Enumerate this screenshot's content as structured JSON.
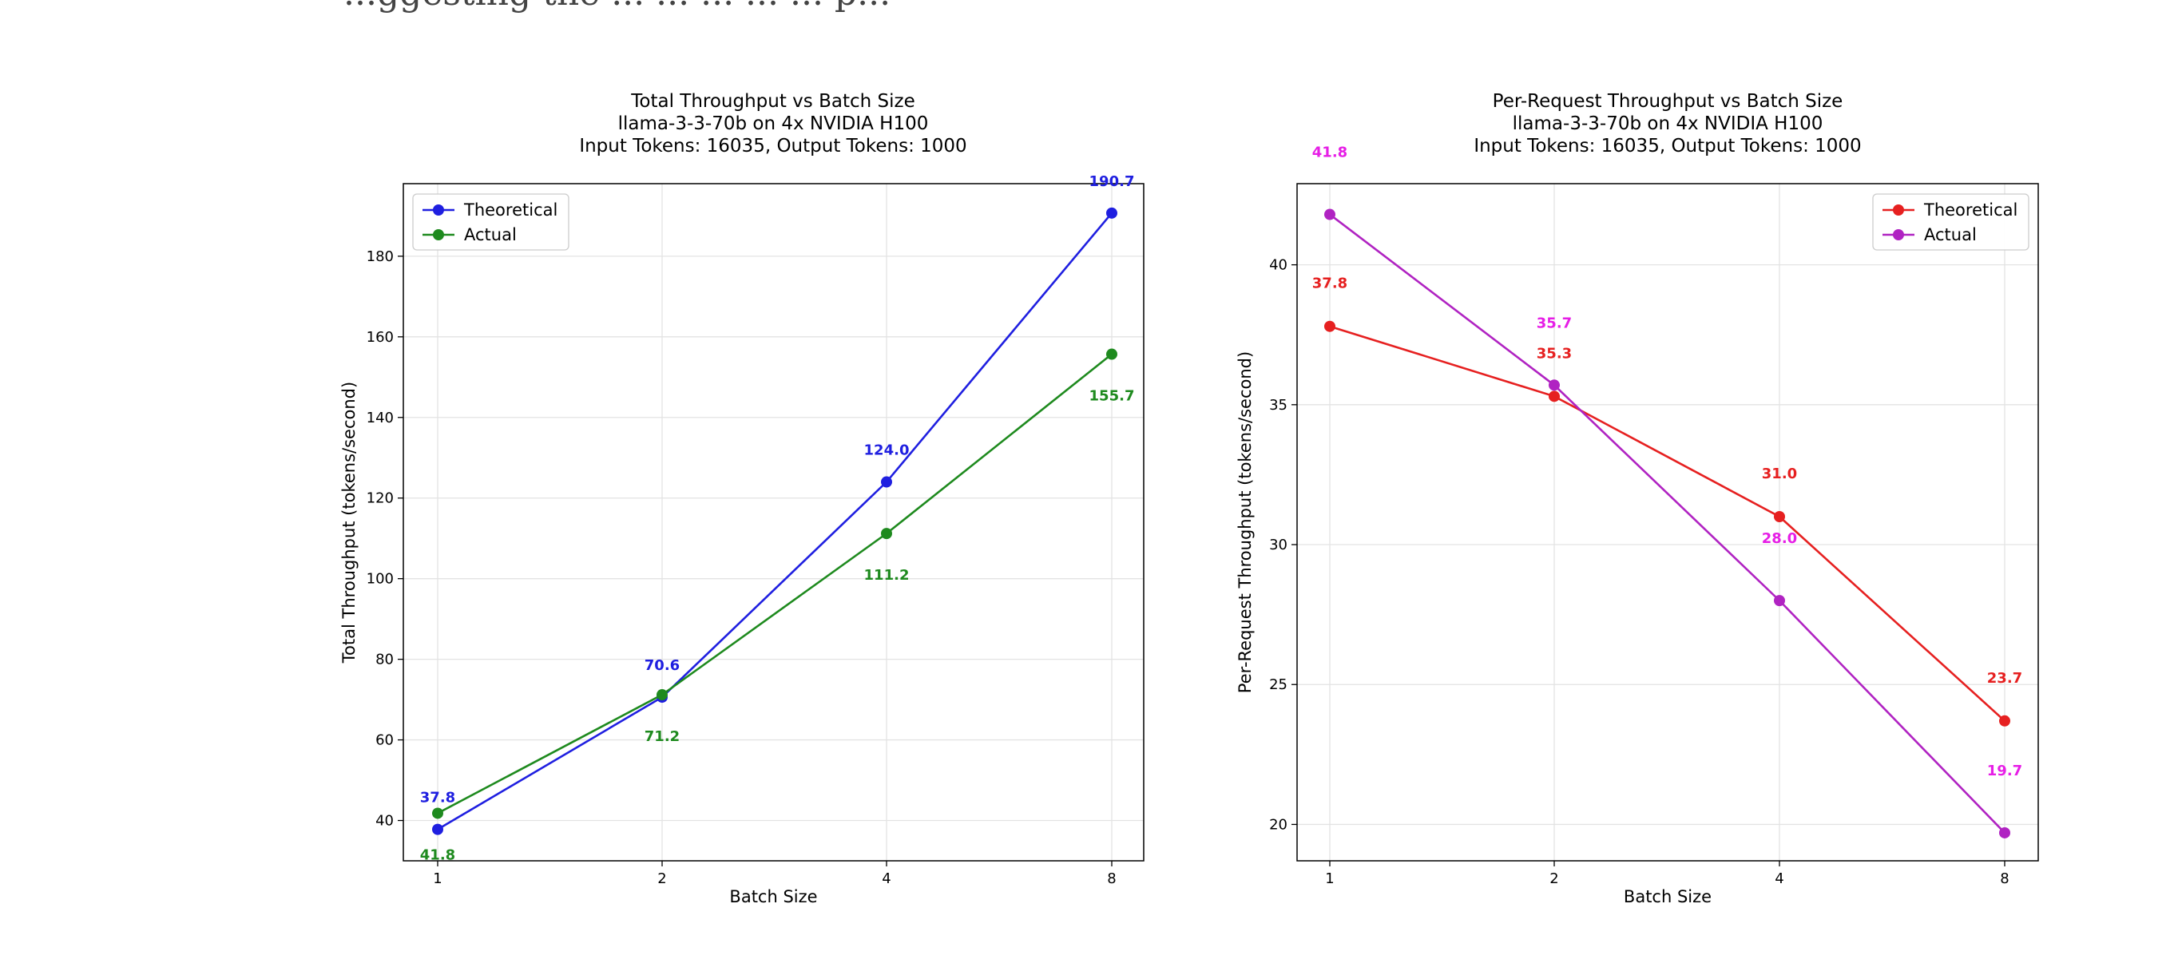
{
  "page": {
    "caption_fragment": "...ggesting the ... ... ... ... ... p..."
  },
  "chart_data": [
    {
      "type": "line",
      "title": [
        "Total Throughput vs Batch Size",
        "llama-3-3-70b on 4x NVIDIA H100",
        "Input Tokens: 16035, Output Tokens: 1000"
      ],
      "xlabel": "Batch Size",
      "ylabel": "Total Throughput (tokens/second)",
      "categories": [
        "1",
        "2",
        "4",
        "8"
      ],
      "ylim": [
        30,
        198
      ],
      "yticks": [
        40,
        60,
        80,
        100,
        120,
        140,
        160,
        180
      ],
      "grid": true,
      "legend_position": "top-left",
      "series": [
        {
          "name": "Theoretical",
          "color": "#1f1fe0",
          "values": [
            37.8,
            70.6,
            124.0,
            190.7
          ],
          "labels": [
            "37.8",
            "70.6",
            "124.0",
            "190.7"
          ]
        },
        {
          "name": "Actual",
          "color": "#1e8a1e",
          "values": [
            41.8,
            71.2,
            111.2,
            155.7
          ],
          "labels": [
            "41.8",
            "71.2",
            "111.2",
            "155.7"
          ]
        }
      ]
    },
    {
      "type": "line",
      "title": [
        "Per-Request Throughput vs Batch Size",
        "llama-3-3-70b on 4x NVIDIA H100",
        "Input Tokens: 16035, Output Tokens: 1000"
      ],
      "xlabel": "Batch Size",
      "ylabel": "Per-Request Throughput (tokens/second)",
      "categories": [
        "1",
        "2",
        "4",
        "8"
      ],
      "ylim": [
        18.7,
        42.9
      ],
      "yticks": [
        20,
        25,
        30,
        35,
        40
      ],
      "grid": true,
      "legend_position": "top-right",
      "series": [
        {
          "name": "Theoretical",
          "color": "#e62020",
          "values": [
            37.8,
            35.3,
            31.0,
            23.7
          ],
          "labels": [
            "37.8",
            "35.3",
            "31.0",
            "23.7"
          ]
        },
        {
          "name": "Actual",
          "color": "#b023c2",
          "label_color": "#e61ee6",
          "values": [
            41.8,
            35.7,
            28.0,
            19.7
          ],
          "labels": [
            "41.8",
            "35.7",
            "28.0",
            "19.7"
          ]
        }
      ]
    }
  ]
}
